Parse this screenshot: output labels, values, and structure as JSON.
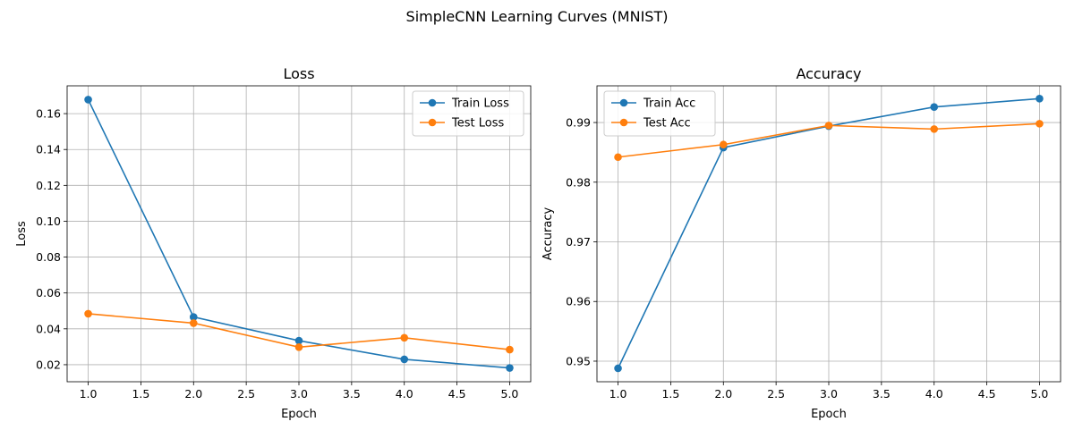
{
  "suptitle": "SimpleCNN Learning Curves (MNIST)",
  "chart_data": [
    {
      "type": "line",
      "title": "Loss",
      "xlabel": "Epoch",
      "ylabel": "Loss",
      "x": [
        1,
        2,
        3,
        4,
        5
      ],
      "xlim": [
        0.8,
        5.2
      ],
      "ylim": [
        0.0105,
        0.1755
      ],
      "xticks": [
        "1.0",
        "1.5",
        "2.0",
        "2.5",
        "3.0",
        "3.5",
        "4.0",
        "4.5",
        "5.0"
      ],
      "xtick_values": [
        1.0,
        1.5,
        2.0,
        2.5,
        3.0,
        3.5,
        4.0,
        4.5,
        5.0
      ],
      "yticks": [
        "0.02",
        "0.04",
        "0.06",
        "0.08",
        "0.10",
        "0.12",
        "0.14",
        "0.16"
      ],
      "ytick_values": [
        0.02,
        0.04,
        0.06,
        0.08,
        0.1,
        0.12,
        0.14,
        0.16
      ],
      "grid": true,
      "legend": "upper right",
      "series": [
        {
          "name": "Train Loss",
          "color": "#1f77b4",
          "values": [
            0.1678,
            0.0466,
            0.0334,
            0.023,
            0.0182
          ]
        },
        {
          "name": "Test Loss",
          "color": "#ff7f0e",
          "values": [
            0.0484,
            0.0432,
            0.0298,
            0.035,
            0.0284
          ]
        }
      ]
    },
    {
      "type": "line",
      "title": "Accuracy",
      "xlabel": "Epoch",
      "ylabel": "Accuracy",
      "x": [
        1,
        2,
        3,
        4,
        5
      ],
      "xlim": [
        0.8,
        5.2
      ],
      "ylim": [
        0.94655,
        0.99615
      ],
      "xticks": [
        "1.0",
        "1.5",
        "2.0",
        "2.5",
        "3.0",
        "3.5",
        "4.0",
        "4.5",
        "5.0"
      ],
      "xtick_values": [
        1.0,
        1.5,
        2.0,
        2.5,
        3.0,
        3.5,
        4.0,
        4.5,
        5.0
      ],
      "yticks": [
        "0.95",
        "0.96",
        "0.97",
        "0.98",
        "0.99"
      ],
      "ytick_values": [
        0.95,
        0.96,
        0.97,
        0.98,
        0.99
      ],
      "grid": true,
      "legend": "upper left",
      "series": [
        {
          "name": "Train Acc",
          "color": "#1f77b4",
          "values": [
            0.9488,
            0.9858,
            0.9894,
            0.9926,
            0.994
          ]
        },
        {
          "name": "Test Acc",
          "color": "#ff7f0e",
          "values": [
            0.9842,
            0.9863,
            0.9895,
            0.9889,
            0.9898
          ]
        }
      ]
    }
  ]
}
